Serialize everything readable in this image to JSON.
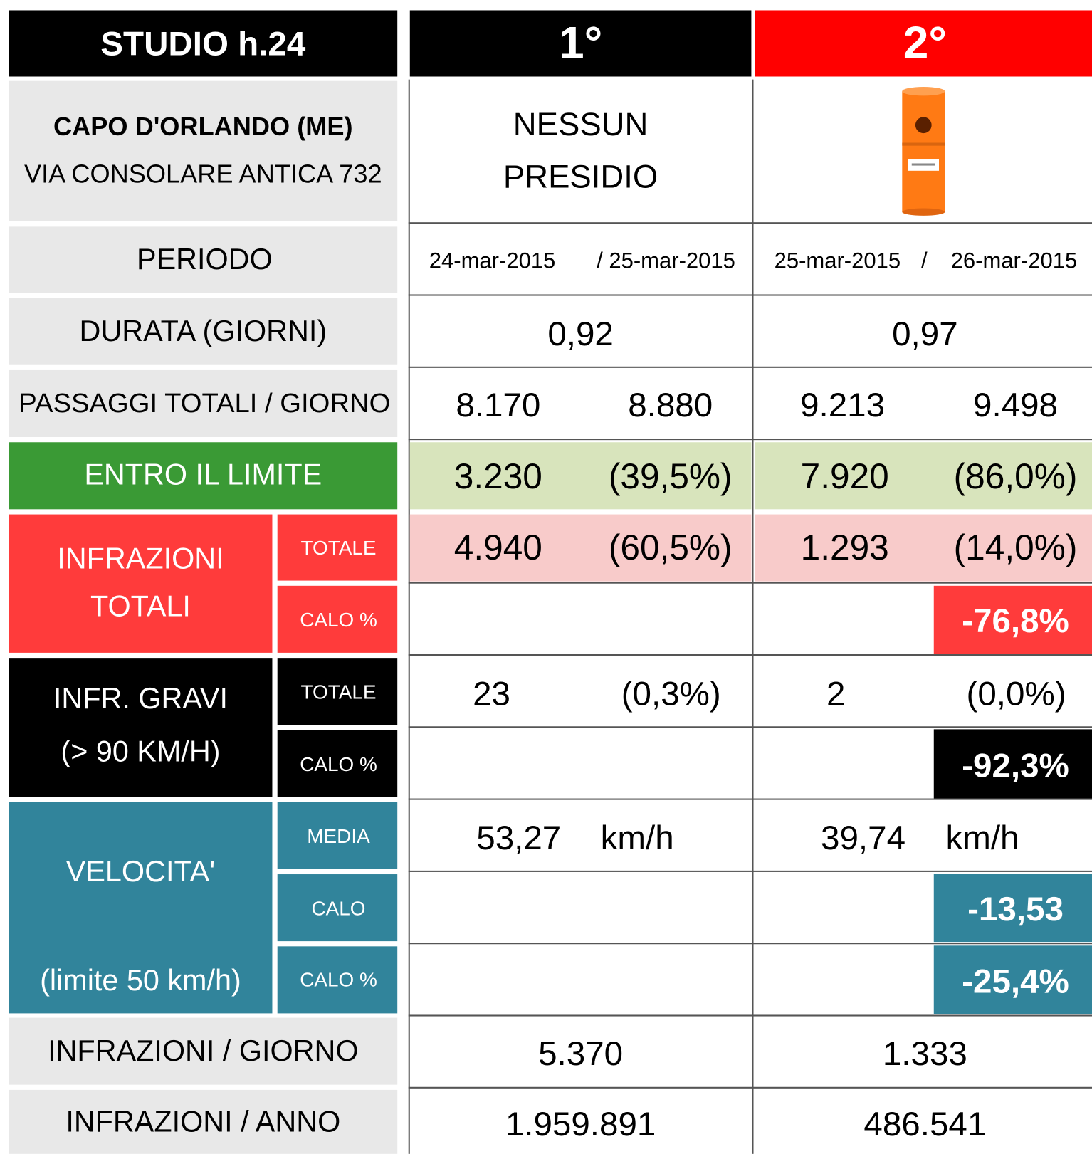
{
  "header": {
    "title": "STUDIO h.24",
    "columns": [
      "1°",
      "2°"
    ]
  },
  "location": {
    "name": "CAPO D'ORLANDO (ME)",
    "address": "VIA CONSOLARE ANTICA 732",
    "col1_device": [
      "NESSUN",
      "PRESIDIO"
    ]
  },
  "rows": {
    "periodo": {
      "label": "PERIODO",
      "col1": [
        "24-mar-2015",
        "/ 25-mar-2015"
      ],
      "col2": [
        "25-mar-2015",
        "/",
        "26-mar-2015"
      ]
    },
    "durata": {
      "label": "DURATA (GIORNI)",
      "values": [
        "0,92",
        "0,97"
      ]
    },
    "passaggi": {
      "label": "PASSAGGI TOTALI / GIORNO",
      "values": [
        "8.170",
        "8.880",
        "9.213",
        "9.498"
      ]
    },
    "entro": {
      "label": "ENTRO IL LIMITE",
      "values": [
        "3.230",
        "(39,5%)",
        "7.920",
        "(86,0%)"
      ]
    },
    "infrazioni": {
      "label": [
        "INFRAZIONI",
        "TOTALI"
      ],
      "sub": [
        "TOTALE",
        "CALO %"
      ],
      "totale": [
        "4.940",
        "(60,5%)",
        "1.293",
        "(14,0%)"
      ],
      "calo": "-76,8%"
    },
    "gravi": {
      "label": [
        "INFR. GRAVI",
        "(> 90 KM/H)"
      ],
      "sub": [
        "TOTALE",
        "CALO %"
      ],
      "totale": [
        "23",
        "(0,3%)",
        "2",
        "(0,0%)"
      ],
      "calo": "-92,3%"
    },
    "velocita": {
      "label": "VELOCITA'",
      "note": "(limite 50 km/h)",
      "sub": [
        "MEDIA",
        "CALO",
        "CALO %"
      ],
      "media": [
        "53,27",
        "km/h",
        "39,74",
        "km/h"
      ],
      "calo": "-13,53",
      "calo_pct": "-25,4%"
    },
    "giorno": {
      "label": "INFRAZIONI / GIORNO",
      "values": [
        "5.370",
        "1.333"
      ]
    },
    "anno": {
      "label": "INFRAZIONI / ANNO",
      "values": [
        "1.959.891",
        "486.541"
      ]
    }
  }
}
